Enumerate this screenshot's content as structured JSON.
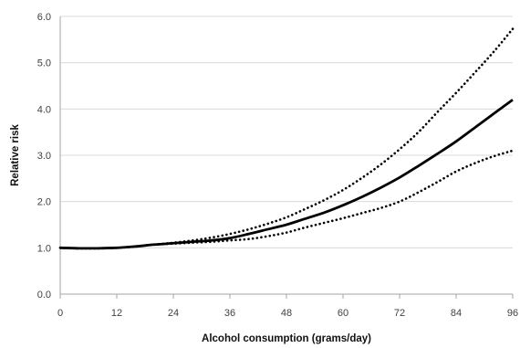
{
  "chart_data": {
    "type": "line",
    "title": "",
    "xlabel": "Alcohol consumption (grams/day)",
    "ylabel": "Relative risk",
    "xlim": [
      0,
      96
    ],
    "ylim": [
      0.0,
      6.0
    ],
    "x_ticks": [
      0,
      12,
      24,
      36,
      48,
      60,
      72,
      84,
      96
    ],
    "x_tick_labels": [
      "0",
      "12",
      "24",
      "36",
      "48",
      "60",
      "72",
      "84",
      "96"
    ],
    "y_ticks": [
      0,
      1,
      2,
      3,
      4,
      5,
      6
    ],
    "y_tick_labels": [
      "0.0",
      "1.0",
      "2.0",
      "3.0",
      "4.0",
      "5.0",
      "6.0"
    ],
    "grid": {
      "y": true,
      "x": false
    },
    "grid_color": "#d9d9d9",
    "legend": "none",
    "series": [
      {
        "style": "solid",
        "color": "#000000",
        "x": [
          0,
          4,
          8,
          12,
          16,
          20,
          24,
          28,
          32,
          36,
          40,
          44,
          48,
          52,
          56,
          60,
          64,
          68,
          72,
          76,
          80,
          84,
          88,
          92,
          96
        ],
        "y": [
          1.0,
          0.99,
          0.99,
          1.0,
          1.03,
          1.07,
          1.1,
          1.13,
          1.16,
          1.21,
          1.3,
          1.4,
          1.5,
          1.63,
          1.76,
          1.92,
          2.1,
          2.3,
          2.52,
          2.77,
          3.03,
          3.3,
          3.6,
          3.9,
          4.2
        ]
      },
      {
        "style": "dotted",
        "color": "#000000",
        "x": [
          0,
          4,
          8,
          12,
          16,
          20,
          24,
          28,
          32,
          36,
          40,
          44,
          48,
          52,
          56,
          60,
          64,
          68,
          72,
          76,
          80,
          84,
          88,
          92,
          96
        ],
        "y": [
          1.0,
          0.99,
          0.99,
          1.0,
          1.03,
          1.07,
          1.11,
          1.16,
          1.22,
          1.3,
          1.4,
          1.52,
          1.66,
          1.84,
          2.03,
          2.25,
          2.51,
          2.8,
          3.13,
          3.5,
          3.93,
          4.35,
          4.79,
          5.24,
          5.73
        ]
      },
      {
        "style": "dotted",
        "color": "#000000",
        "x": [
          0,
          4,
          8,
          12,
          16,
          20,
          24,
          28,
          32,
          36,
          40,
          44,
          48,
          52,
          56,
          60,
          64,
          68,
          72,
          76,
          80,
          84,
          88,
          92,
          96
        ],
        "y": [
          1.0,
          0.99,
          0.99,
          1.0,
          1.03,
          1.07,
          1.09,
          1.11,
          1.13,
          1.16,
          1.19,
          1.25,
          1.33,
          1.44,
          1.54,
          1.64,
          1.75,
          1.86,
          2.0,
          2.2,
          2.42,
          2.65,
          2.83,
          2.98,
          3.1
        ]
      }
    ]
  }
}
